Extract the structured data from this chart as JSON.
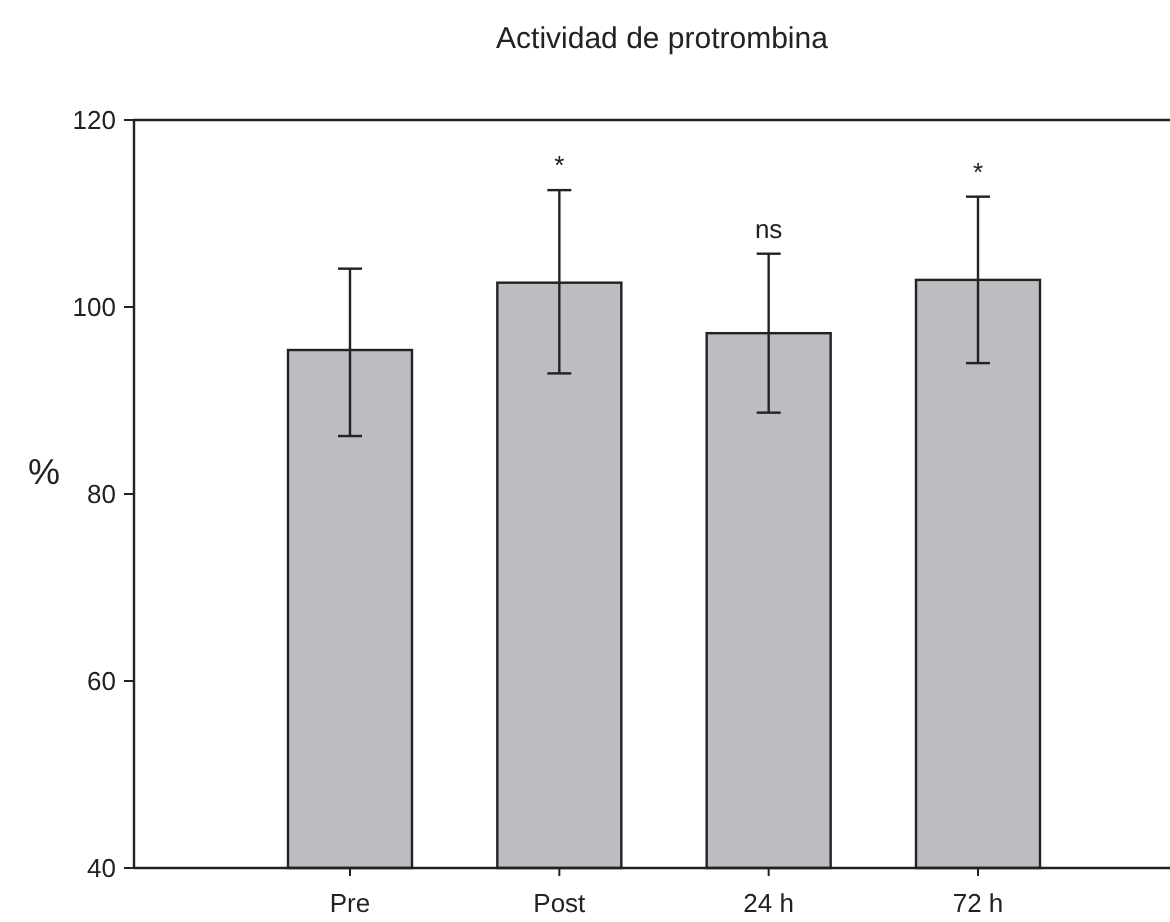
{
  "chart_data": {
    "type": "bar",
    "title": "Actividad de protrombina",
    "ylabel": "%",
    "categories": [
      "Pre",
      "Post",
      "24 h",
      "72 h"
    ],
    "values": [
      95.4,
      102.6,
      97.2,
      102.9
    ],
    "errors": [
      [
        86.2,
        104.1
      ],
      [
        92.9,
        112.5
      ],
      [
        88.7,
        105.7
      ],
      [
        94.0,
        111.8
      ]
    ],
    "color": "#bcbdc1",
    "ylim": [
      40,
      120
    ],
    "yticks": [
      40,
      60,
      80,
      100,
      120
    ],
    "grid": false,
    "annotations": [
      {
        "text": "*",
        "x": "Post",
        "y": 112.5
      },
      {
        "text": "ns",
        "x": "24 h",
        "y": 105.7
      },
      {
        "text": "*",
        "x": "72 h",
        "y": 111.8
      }
    ]
  }
}
